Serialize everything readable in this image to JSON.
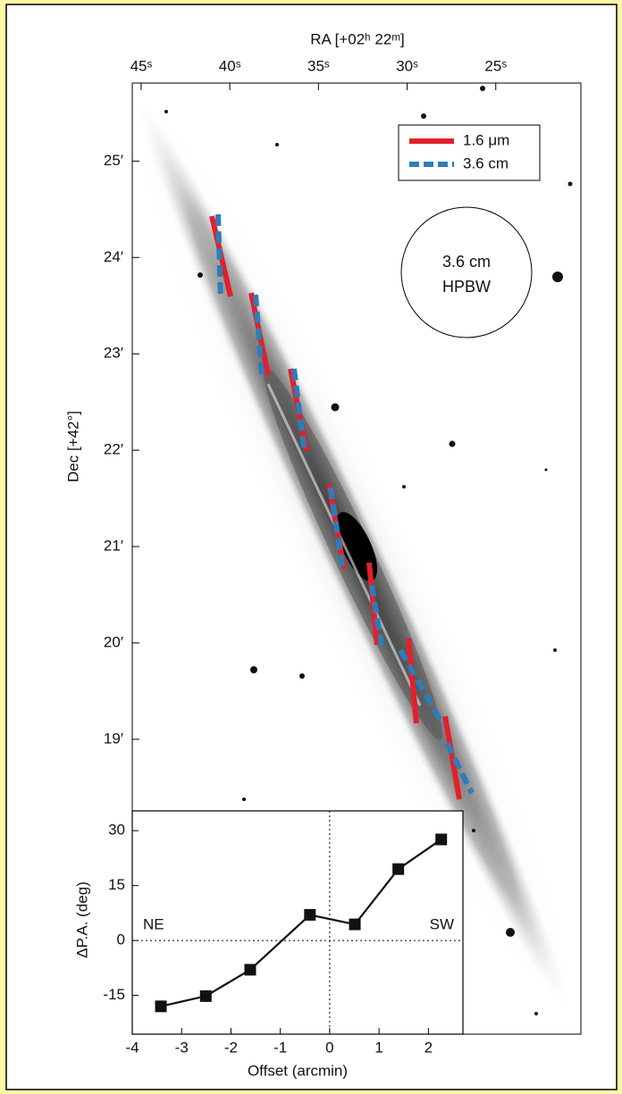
{
  "chart_data": [
    {
      "type": "image",
      "x_label": "RA [+02ʰ 22ᵐ]",
      "y_label": "Dec [+42°]",
      "xlim": [
        45.5,
        20.2
      ],
      "xticks": [
        {
          "value": 45,
          "label": "45ˢ"
        },
        {
          "value": 40,
          "label": "40ˢ"
        },
        {
          "value": 35,
          "label": "35ˢ"
        },
        {
          "value": 30,
          "label": "30ˢ"
        },
        {
          "value": 25,
          "label": "25ˢ"
        }
      ],
      "ylim": [
        15.94,
        25.81
      ],
      "yticks": [
        {
          "value": 25,
          "label": "25′"
        },
        {
          "value": 24,
          "label": "24′"
        },
        {
          "value": 23,
          "label": "23′"
        },
        {
          "value": 22,
          "label": "22′"
        },
        {
          "value": 21,
          "label": "21′"
        },
        {
          "value": 20,
          "label": "20′"
        },
        {
          "value": 19,
          "label": "19′"
        }
      ],
      "legend": [
        {
          "name": "1.6 μm",
          "color": "#e3202b"
        },
        {
          "name": "3.6 cm",
          "color": "#2d7db8"
        }
      ],
      "beam_label": [
        "3.6 cm",
        "HPBW"
      ]
    },
    {
      "type": "line",
      "x_label": "Offset (arcmin)",
      "y_label": "ΔP.A. (deg)",
      "annotations": [
        "NE",
        "SW"
      ],
      "x": [
        -3.42,
        -2.51,
        -1.61,
        -0.4,
        0.51,
        1.39,
        2.26
      ],
      "series": [
        {
          "color": "#111111",
          "values": [
            -18,
            -15.2,
            -8,
            7,
            4.4,
            19.5,
            27.6
          ]
        }
      ],
      "xlim": [
        -4,
        2.7
      ],
      "xticks": [
        -4,
        -3,
        -2,
        -1,
        0,
        1,
        2
      ],
      "ylim": [
        -25.6,
        35.4
      ],
      "yticks": [
        30,
        15,
        0,
        -15
      ]
    }
  ]
}
